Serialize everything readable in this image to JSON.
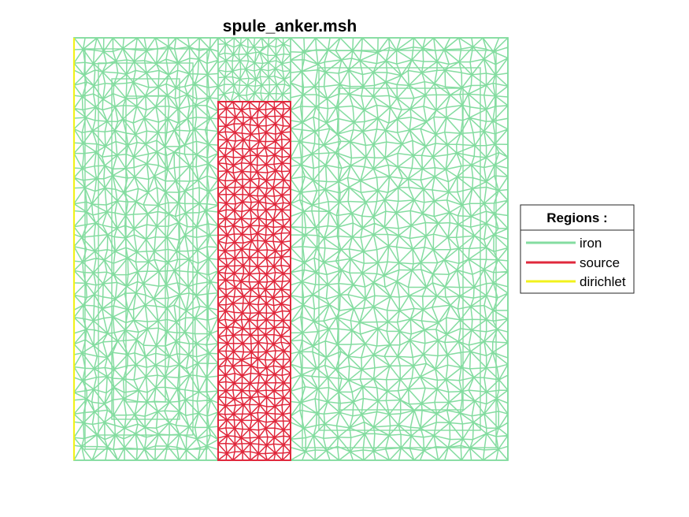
{
  "figure": {
    "title": "spule_anker.msh"
  },
  "legend": {
    "title": "Regions :",
    "entries": [
      {
        "label": "iron",
        "color": "#84dca0"
      },
      {
        "label": "source",
        "color": "#e0283c"
      },
      {
        "label": "dirichlet",
        "color": "#f2f21c"
      }
    ]
  },
  "mesh": {
    "type": "triangular-fem-mesh",
    "regions": [
      "iron",
      "source",
      "dirichlet"
    ]
  }
}
